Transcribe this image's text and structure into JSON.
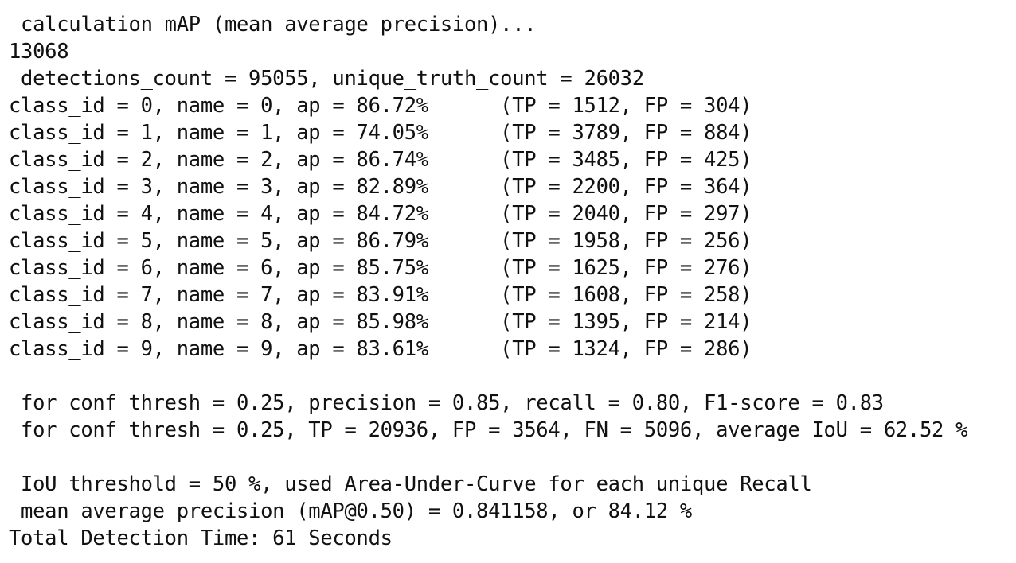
{
  "terminal": {
    "lines": [
      " calculation mAP (mean average precision)...",
      "13068",
      " detections_count = 95055, unique_truth_count = 26032",
      "class_id = 0, name = 0, ap = 86.72%      (TP = 1512, FP = 304)",
      "class_id = 1, name = 1, ap = 74.05%      (TP = 3789, FP = 884)",
      "class_id = 2, name = 2, ap = 86.74%      (TP = 3485, FP = 425)",
      "class_id = 3, name = 3, ap = 82.89%      (TP = 2200, FP = 364)",
      "class_id = 4, name = 4, ap = 84.72%      (TP = 2040, FP = 297)",
      "class_id = 5, name = 5, ap = 86.79%      (TP = 1958, FP = 256)",
      "class_id = 6, name = 6, ap = 85.75%      (TP = 1625, FP = 276)",
      "class_id = 7, name = 7, ap = 83.91%      (TP = 1608, FP = 258)",
      "class_id = 8, name = 8, ap = 85.98%      (TP = 1395, FP = 214)",
      "class_id = 9, name = 9, ap = 83.61%      (TP = 1324, FP = 286)",
      "",
      " for conf_thresh = 0.25, precision = 0.85, recall = 0.80, F1-score = 0.83",
      " for conf_thresh = 0.25, TP = 20936, FP = 3564, FN = 5096, average IoU = 62.52 %",
      "",
      " IoU threshold = 50 %, used Area-Under-Curve for each unique Recall",
      " mean average precision (mAP@0.50) = 0.841158, or 84.12 %",
      "Total Detection Time: 61 Seconds"
    ]
  }
}
